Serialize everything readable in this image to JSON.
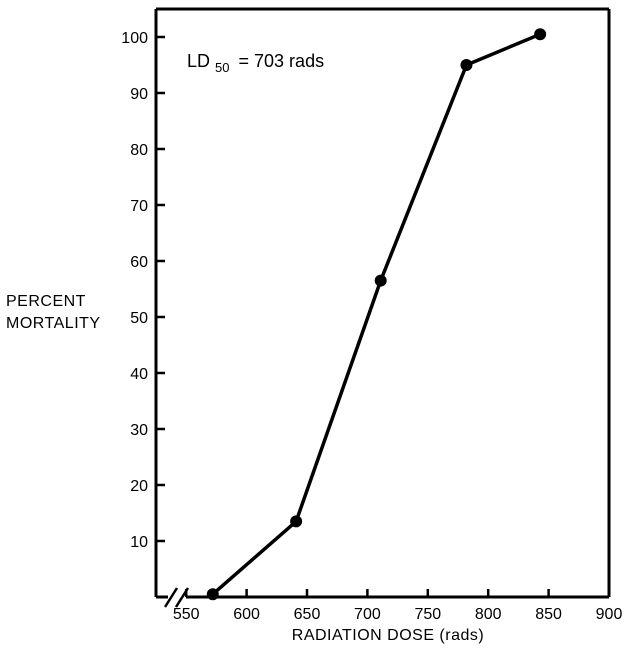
{
  "chart_data": {
    "type": "line",
    "title": "",
    "xlabel": "RADIATION DOSE (rads)",
    "ylabel_lines": [
      "PERCENT",
      "MORTALITY"
    ],
    "x_ticks": [
      550,
      600,
      650,
      700,
      750,
      800,
      850,
      900
    ],
    "y_ticks": [
      10,
      20,
      30,
      40,
      50,
      60,
      70,
      80,
      90,
      100
    ],
    "xlim": [
      525,
      900
    ],
    "ylim": [
      0,
      105
    ],
    "x_axis_break": true,
    "grid": false,
    "series": [
      {
        "x": [
          572,
          641,
          711,
          782,
          843
        ],
        "y": [
          0.5,
          13.5,
          56.5,
          95,
          100.5
        ]
      }
    ],
    "annotation": {
      "main": "LD",
      "subscript": "50",
      "value": "= 703 rads"
    }
  }
}
